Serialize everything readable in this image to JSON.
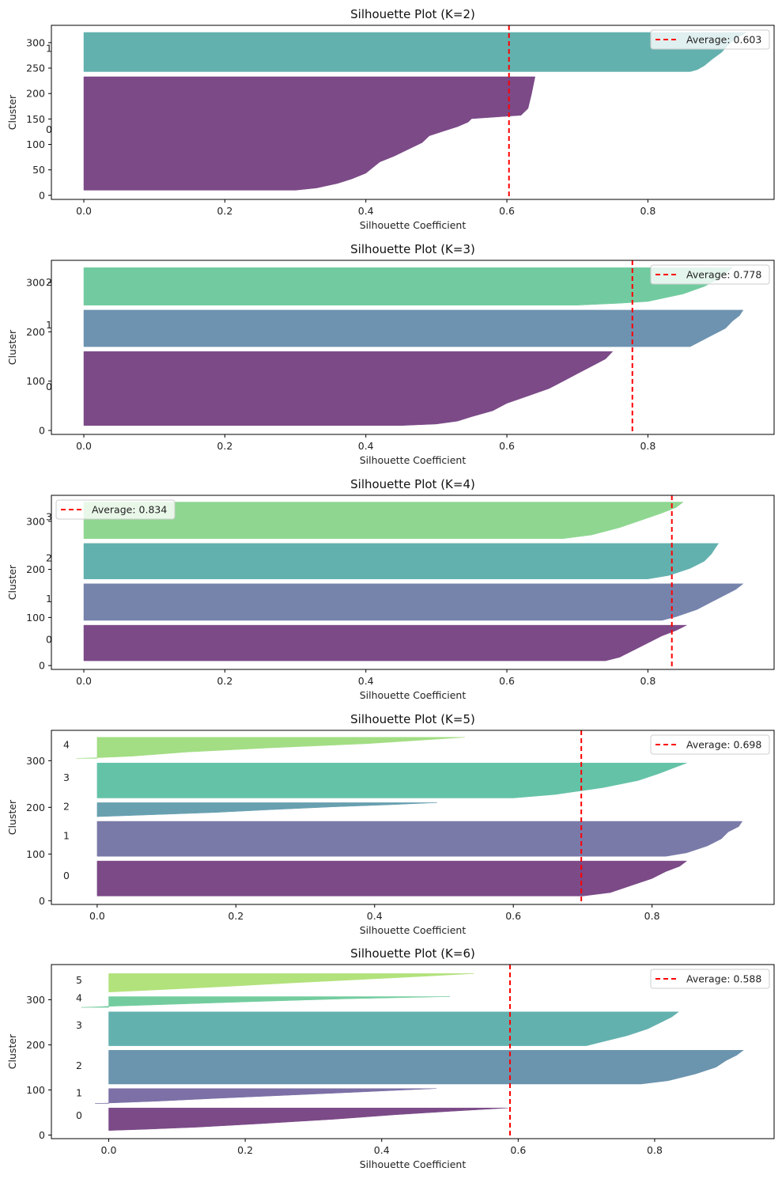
{
  "figure": {
    "background": "#ffffff"
  },
  "chart_data": [
    {
      "type": "area",
      "title": "Silhouette Plot (K=2)",
      "xlabel": "Silhouette Coefficient",
      "ylabel": "Cluster",
      "xlim": [
        -0.046,
        0.979
      ],
      "ylim": [
        -8,
        334
      ],
      "xticks": [
        "0.0",
        "0.2",
        "0.4",
        "0.6",
        "0.8"
      ],
      "yticks": [
        "0",
        "50",
        "100",
        "150",
        "200",
        "250",
        "300"
      ],
      "average": 0.603,
      "legend_label": "Average: 0.603",
      "legend_position": "top-right",
      "line_color": "#ff0000",
      "clusters": [
        {
          "label": "0",
          "color": "#7b4a87",
          "y_range": [
            10,
            233
          ],
          "label_y": 130,
          "profile": [
            [
              0,
              0.3
            ],
            [
              0.02,
              0.33
            ],
            [
              0.06,
              0.36
            ],
            [
              0.1,
              0.38
            ],
            [
              0.15,
              0.4
            ],
            [
              0.2,
              0.41
            ],
            [
              0.25,
              0.42
            ],
            [
              0.3,
              0.44
            ],
            [
              0.36,
              0.46
            ],
            [
              0.42,
              0.48
            ],
            [
              0.48,
              0.49
            ],
            [
              0.52,
              0.51
            ],
            [
              0.56,
              0.53
            ],
            [
              0.6,
              0.545
            ],
            [
              0.63,
              0.55
            ],
            [
              0.66,
              0.62
            ],
            [
              0.72,
              0.63
            ],
            [
              0.85,
              0.635
            ],
            [
              1,
              0.64
            ]
          ]
        },
        {
          "label": "1",
          "color": "#63b1ae",
          "y_range": [
            243,
            320
          ],
          "label_y": 290,
          "profile": [
            [
              0,
              0.86
            ],
            [
              0.05,
              0.87
            ],
            [
              0.15,
              0.88
            ],
            [
              0.3,
              0.89
            ],
            [
              0.5,
              0.905
            ],
            [
              0.7,
              0.915
            ],
            [
              0.85,
              0.925
            ],
            [
              1,
              0.94
            ]
          ]
        }
      ]
    },
    {
      "type": "area",
      "title": "Silhouette Plot (K=3)",
      "xlabel": "Silhouette Coefficient",
      "ylabel": "Cluster",
      "xlim": [
        -0.046,
        0.979
      ],
      "ylim": [
        -8,
        345
      ],
      "xticks": [
        "0.0",
        "0.2",
        "0.4",
        "0.6",
        "0.8"
      ],
      "yticks": [
        "0",
        "100",
        "200",
        "300"
      ],
      "average": 0.778,
      "legend_label": "Average: 0.778",
      "legend_position": "top-right",
      "line_color": "#ff0000",
      "clusters": [
        {
          "label": "0",
          "color": "#7b4a87",
          "y_range": [
            10,
            160
          ],
          "label_y": 90,
          "profile": [
            [
              0,
              0.45
            ],
            [
              0.02,
              0.5
            ],
            [
              0.06,
              0.53
            ],
            [
              0.12,
              0.55
            ],
            [
              0.2,
              0.58
            ],
            [
              0.3,
              0.6
            ],
            [
              0.4,
              0.63
            ],
            [
              0.5,
              0.66
            ],
            [
              0.6,
              0.68
            ],
            [
              0.7,
              0.7
            ],
            [
              0.8,
              0.72
            ],
            [
              0.9,
              0.74
            ],
            [
              1,
              0.75
            ]
          ]
        },
        {
          "label": "1",
          "color": "#6d93b0",
          "y_range": [
            170,
            244
          ],
          "label_y": 215,
          "profile": [
            [
              0,
              0.86
            ],
            [
              0.1,
              0.87
            ],
            [
              0.3,
              0.89
            ],
            [
              0.5,
              0.91
            ],
            [
              0.7,
              0.92
            ],
            [
              0.85,
              0.93
            ],
            [
              1,
              0.935
            ]
          ]
        },
        {
          "label": "2",
          "color": "#72cba0",
          "y_range": [
            254,
            330
          ],
          "label_y": 302,
          "profile": [
            [
              0,
              0.7
            ],
            [
              0.05,
              0.76
            ],
            [
              0.1,
              0.8
            ],
            [
              0.3,
              0.85
            ],
            [
              0.5,
              0.88
            ],
            [
              0.7,
              0.9
            ],
            [
              0.85,
              0.91
            ],
            [
              1,
              0.92
            ]
          ]
        }
      ]
    },
    {
      "type": "area",
      "title": "Silhouette Plot (K=4)",
      "xlabel": "Silhouette Coefficient",
      "ylabel": "Cluster",
      "xlim": [
        -0.046,
        0.979
      ],
      "ylim": [
        -8,
        354
      ],
      "xticks": [
        "0.0",
        "0.2",
        "0.4",
        "0.6",
        "0.8"
      ],
      "yticks": [
        "0",
        "100",
        "200",
        "300"
      ],
      "average": 0.834,
      "legend_label": "Average: 0.834",
      "legend_position": "upper-left",
      "line_color": "#ff0000",
      "clusters": [
        {
          "label": "0",
          "color": "#7b4a87",
          "y_range": [
            10,
            84
          ],
          "label_y": 55,
          "profile": [
            [
              0,
              0.74
            ],
            [
              0.1,
              0.76
            ],
            [
              0.3,
              0.78
            ],
            [
              0.5,
              0.8
            ],
            [
              0.7,
              0.82
            ],
            [
              0.85,
              0.84
            ],
            [
              1,
              0.855
            ]
          ]
        },
        {
          "label": "1",
          "color": "#7684ac",
          "y_range": [
            94,
            170
          ],
          "label_y": 140,
          "profile": [
            [
              0,
              0.82
            ],
            [
              0.1,
              0.84
            ],
            [
              0.3,
              0.87
            ],
            [
              0.5,
              0.89
            ],
            [
              0.7,
              0.91
            ],
            [
              0.85,
              0.925
            ],
            [
              1,
              0.935
            ]
          ]
        },
        {
          "label": "2",
          "color": "#63b1ae",
          "y_range": [
            180,
            254
          ],
          "label_y": 225,
          "profile": [
            [
              0,
              0.8
            ],
            [
              0.1,
              0.83
            ],
            [
              0.3,
              0.86
            ],
            [
              0.5,
              0.88
            ],
            [
              0.7,
              0.89
            ],
            [
              0.85,
              0.895
            ],
            [
              1,
              0.9
            ]
          ]
        },
        {
          "label": "3",
          "color": "#8fd791",
          "y_range": [
            264,
            340
          ],
          "label_y": 310,
          "profile": [
            [
              0,
              0.68
            ],
            [
              0.1,
              0.72
            ],
            [
              0.3,
              0.76
            ],
            [
              0.5,
              0.79
            ],
            [
              0.7,
              0.82
            ],
            [
              0.85,
              0.84
            ],
            [
              1,
              0.85
            ]
          ]
        }
      ]
    },
    {
      "type": "area",
      "title": "Silhouette Plot (K=5)",
      "xlabel": "Silhouette Coefficient",
      "ylabel": "Cluster",
      "xlim": [
        -0.066,
        0.976
      ],
      "ylim": [
        -8,
        365
      ],
      "xticks": [
        "0.0",
        "0.2",
        "0.4",
        "0.6",
        "0.8"
      ],
      "yticks": [
        "0",
        "100",
        "200",
        "300"
      ],
      "average": 0.698,
      "legend_label": "Average: 0.698",
      "legend_position": "top-right",
      "line_color": "#ff0000",
      "clusters": [
        {
          "label": "0",
          "color": "#7b4a87",
          "y_range": [
            10,
            85
          ],
          "label_y": 55,
          "profile": [
            [
              0,
              0.7
            ],
            [
              0.1,
              0.74
            ],
            [
              0.3,
              0.77
            ],
            [
              0.5,
              0.8
            ],
            [
              0.7,
              0.82
            ],
            [
              0.85,
              0.84
            ],
            [
              1,
              0.85
            ]
          ]
        },
        {
          "label": "1",
          "color": "#7a7aa9",
          "y_range": [
            95,
            170
          ],
          "label_y": 140,
          "profile": [
            [
              0,
              0.82
            ],
            [
              0.1,
              0.85
            ],
            [
              0.3,
              0.88
            ],
            [
              0.5,
              0.9
            ],
            [
              0.7,
              0.91
            ],
            [
              0.85,
              0.925
            ],
            [
              1,
              0.93
            ]
          ]
        },
        {
          "label": "2",
          "color": "#68a0b0",
          "y_range": [
            180,
            210
          ],
          "label_y": 203,
          "profile": [
            [
              0,
              0.0
            ],
            [
              0.1,
              0.06
            ],
            [
              0.3,
              0.17
            ],
            [
              0.5,
              0.25
            ],
            [
              0.7,
              0.34
            ],
            [
              0.85,
              0.42
            ],
            [
              1,
              0.49
            ]
          ]
        },
        {
          "label": "3",
          "color": "#64c2a7",
          "y_range": [
            220,
            295
          ],
          "label_y": 265,
          "profile": [
            [
              0,
              0.6
            ],
            [
              0.1,
              0.66
            ],
            [
              0.3,
              0.73
            ],
            [
              0.5,
              0.78
            ],
            [
              0.7,
              0.81
            ],
            [
              0.85,
              0.83
            ],
            [
              1,
              0.85
            ]
          ]
        },
        {
          "label": "4",
          "color": "#a3dd84",
          "y_range": [
            305,
            350
          ],
          "label_y": 335,
          "profile": [
            [
              0,
              -0.03
            ],
            [
              0.03,
              0.0
            ],
            [
              0.1,
              0.05
            ],
            [
              0.3,
              0.13
            ],
            [
              0.5,
              0.25
            ],
            [
              0.7,
              0.39
            ],
            [
              0.85,
              0.46
            ],
            [
              1,
              0.53
            ]
          ]
        }
      ]
    },
    {
      "type": "area",
      "title": "Silhouette Plot (K=6)",
      "xlabel": "Silhouette Coefficient",
      "ylabel": "Cluster",
      "xlim": [
        -0.084,
        0.975
      ],
      "ylim": [
        -8,
        378
      ],
      "xticks": [
        "0.0",
        "0.2",
        "0.4",
        "0.6",
        "0.8"
      ],
      "yticks": [
        "0",
        "100",
        "200",
        "300"
      ],
      "average": 0.588,
      "legend_label": "Average: 0.588",
      "legend_position": "top-right",
      "line_color": "#ff0000",
      "clusters": [
        {
          "label": "0",
          "color": "#7b4a87",
          "y_range": [
            10,
            60
          ],
          "label_y": 45,
          "profile": [
            [
              0,
              0.0
            ],
            [
              0.05,
              0.05
            ],
            [
              0.15,
              0.13
            ],
            [
              0.3,
              0.22
            ],
            [
              0.5,
              0.33
            ],
            [
              0.7,
              0.42
            ],
            [
              0.85,
              0.5
            ],
            [
              1,
              0.585
            ]
          ]
        },
        {
          "label": "1",
          "color": "#7c70a6",
          "y_range": [
            70,
            103
          ],
          "label_y": 95,
          "profile": [
            [
              0,
              -0.02
            ],
            [
              0.03,
              0.0
            ],
            [
              0.15,
              0.07
            ],
            [
              0.35,
              0.16
            ],
            [
              0.55,
              0.26
            ],
            [
              0.75,
              0.36
            ],
            [
              0.9,
              0.43
            ],
            [
              1,
              0.48
            ]
          ]
        },
        {
          "label": "2",
          "color": "#6b94ae",
          "y_range": [
            113,
            188
          ],
          "label_y": 155,
          "profile": [
            [
              0,
              0.78
            ],
            [
              0.1,
              0.82
            ],
            [
              0.3,
              0.86
            ],
            [
              0.5,
              0.89
            ],
            [
              0.7,
              0.905
            ],
            [
              0.85,
              0.92
            ],
            [
              1,
              0.93
            ]
          ]
        },
        {
          "label": "3",
          "color": "#63b1ae",
          "y_range": [
            198,
            273
          ],
          "label_y": 245,
          "profile": [
            [
              0,
              0.7
            ],
            [
              0.1,
              0.72
            ],
            [
              0.3,
              0.76
            ],
            [
              0.5,
              0.79
            ],
            [
              0.7,
              0.81
            ],
            [
              0.85,
              0.825
            ],
            [
              1,
              0.835
            ]
          ]
        },
        {
          "label": "4",
          "color": "#73cc9e",
          "y_range": [
            283,
            307
          ],
          "label_y": 305,
          "profile": [
            [
              0,
              -0.04
            ],
            [
              0.05,
              -0.02
            ],
            [
              0.1,
              0.0
            ],
            [
              0.3,
              0.1
            ],
            [
              0.55,
              0.22
            ],
            [
              0.8,
              0.35
            ],
            [
              1,
              0.5
            ]
          ]
        },
        {
          "label": "5",
          "color": "#b2e27c",
          "y_range": [
            317,
            358
          ],
          "label_y": 345,
          "profile": [
            [
              0,
              0.0
            ],
            [
              0.1,
              0.06
            ],
            [
              0.3,
              0.17
            ],
            [
              0.5,
              0.27
            ],
            [
              0.7,
              0.38
            ],
            [
              0.85,
              0.46
            ],
            [
              1,
              0.535
            ]
          ]
        }
      ]
    }
  ]
}
